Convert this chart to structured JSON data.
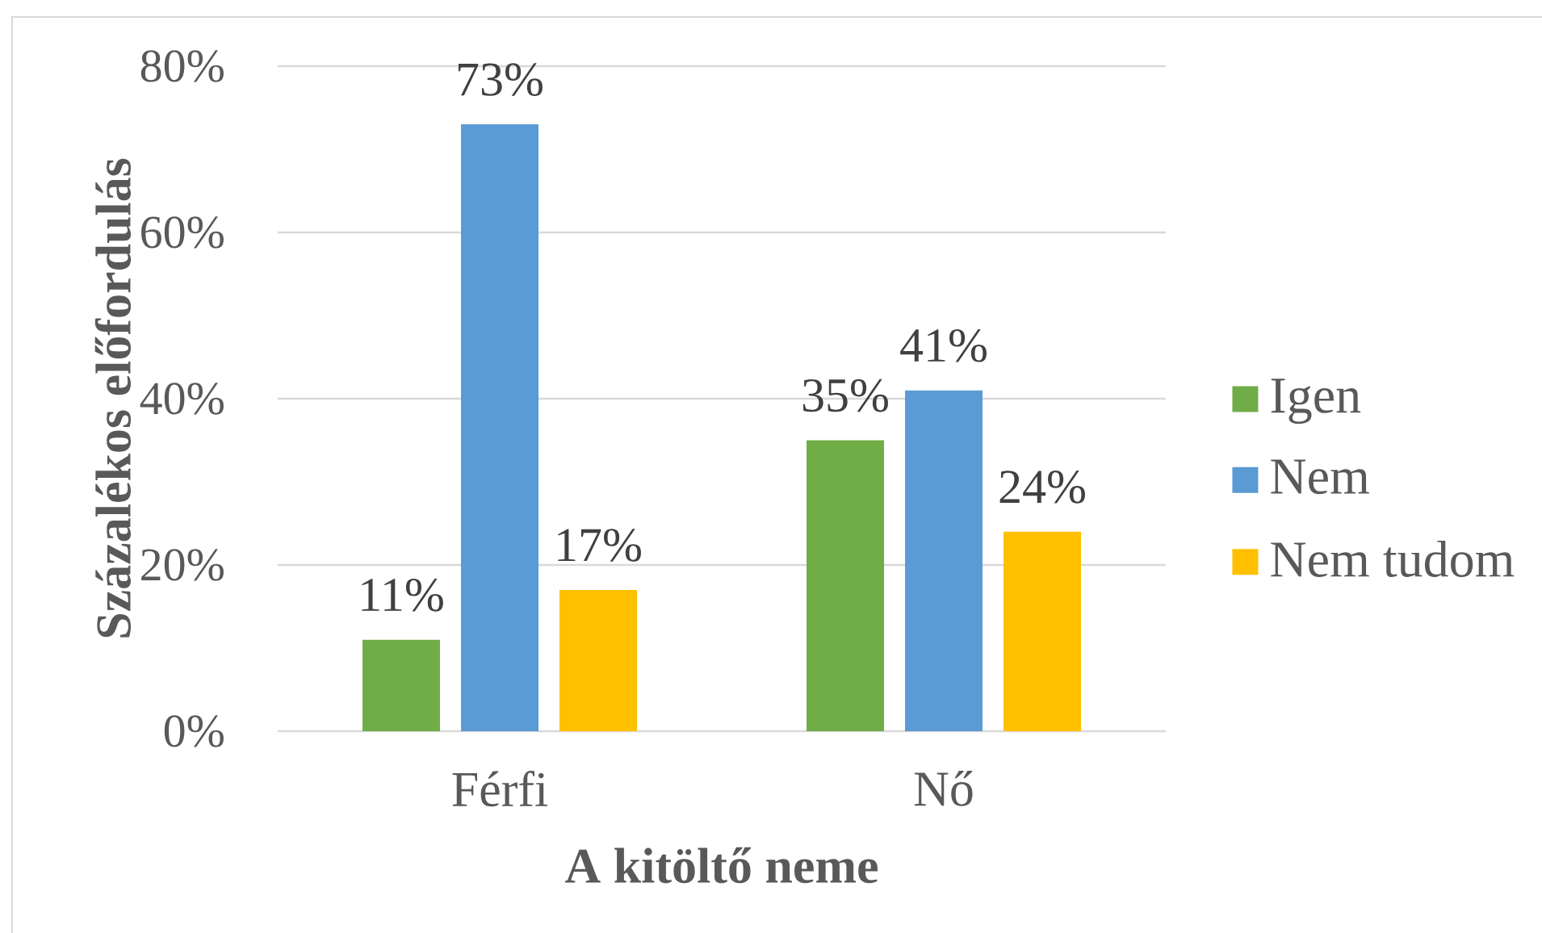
{
  "chart_data": {
    "type": "bar",
    "xlabel": "A kitöltő neme",
    "ylabel": "Százalékos előfordulás",
    "categories": [
      "Férfi",
      "Nő"
    ],
    "series": [
      {
        "name": "Igen",
        "color": "#70ad47",
        "values": [
          11,
          35
        ],
        "value_labels": [
          "11%",
          "35%"
        ]
      },
      {
        "name": "Nem",
        "color": "#5b9bd5",
        "values": [
          73,
          41
        ],
        "value_labels": [
          "73%",
          "41%"
        ]
      },
      {
        "name": "Nem tudom",
        "color": "#ffc000",
        "values": [
          17,
          24
        ],
        "value_labels": [
          "17%",
          "24%"
        ]
      }
    ],
    "ylim": [
      0,
      80
    ],
    "yticks": [
      {
        "value": 0,
        "label": "0%"
      },
      {
        "value": 20,
        "label": "20%"
      },
      {
        "value": 40,
        "label": "40%"
      },
      {
        "value": 60,
        "label": "60%"
      },
      {
        "value": 80,
        "label": "80%"
      }
    ],
    "grid": "y",
    "legend": "right"
  }
}
